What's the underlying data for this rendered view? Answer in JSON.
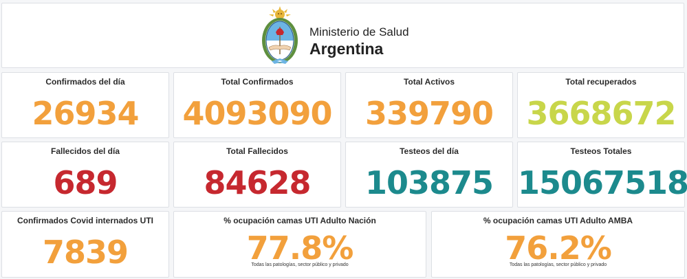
{
  "header": {
    "ministry": "Ministerio de Salud",
    "country": "Argentina",
    "logo_icon": "argentina-coat-of-arms-icon"
  },
  "colors": {
    "orange": "#f2a03c",
    "lime": "#c8d64a",
    "red": "#c6282f",
    "teal": "#1c8a8d"
  },
  "cards": [
    {
      "label": "Confirmados del día",
      "value": "26934",
      "color": "#f2a03c"
    },
    {
      "label": "Total Confirmados",
      "value": "4093090",
      "color": "#f2a03c"
    },
    {
      "label": "Total Activos",
      "value": "339790",
      "color": "#f2a03c"
    },
    {
      "label": "Total recuperados",
      "value": "3668672",
      "color": "#c8d64a"
    },
    {
      "label": "Fallecidos del día",
      "value": "689",
      "color": "#c6282f"
    },
    {
      "label": "Total Fallecidos",
      "value": "84628",
      "color": "#c6282f"
    },
    {
      "label": "Testeos del día",
      "value": "103875",
      "color": "#1c8a8d"
    },
    {
      "label": "Testeos Totales",
      "value": "15067518",
      "color": "#1c8a8d"
    },
    {
      "label": "Confirmados Covid internados UTI",
      "value": "7839",
      "color": "#f2a03c"
    },
    {
      "label": "% ocupación camas UTI Adulto Nación",
      "value": "77.8%",
      "color": "#f2a03c",
      "note": "Todas las patologías, sector público y privado"
    },
    {
      "label": "% ocupación camas UTI Adulto AMBA",
      "value": "76.2%",
      "color": "#f2a03c",
      "note": "Todas las patologías, sector público y privado"
    }
  ]
}
